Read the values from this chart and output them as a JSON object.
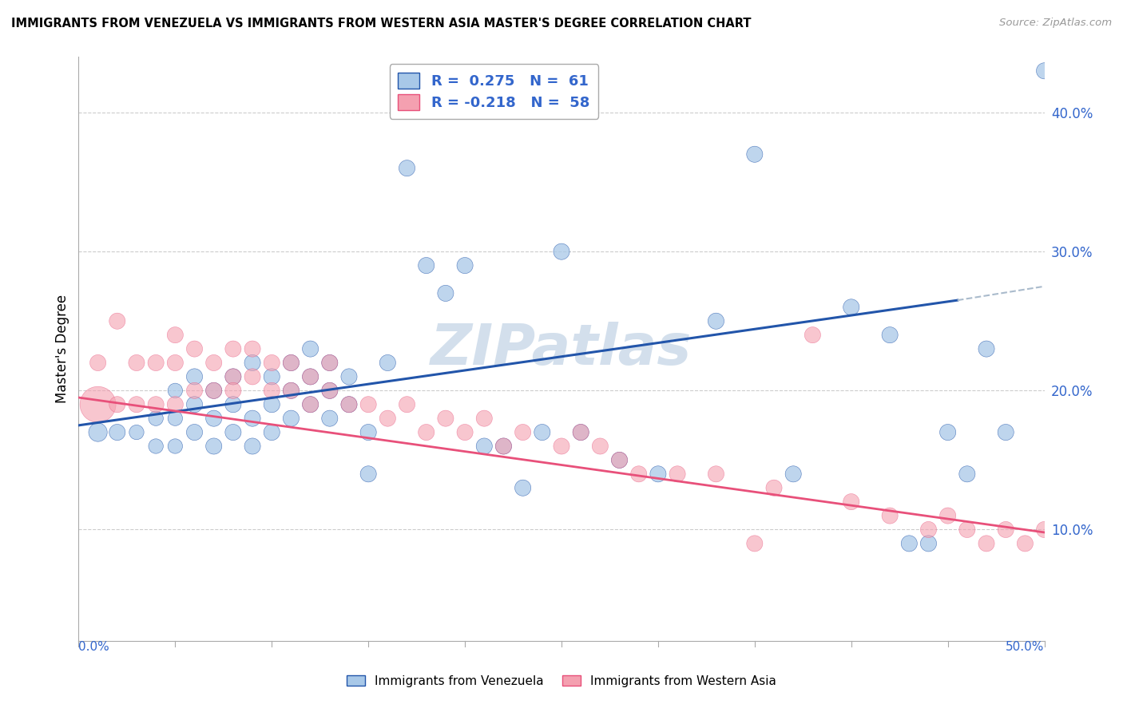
{
  "title": "IMMIGRANTS FROM VENEZUELA VS IMMIGRANTS FROM WESTERN ASIA MASTER'S DEGREE CORRELATION CHART",
  "source": "Source: ZipAtlas.com",
  "ylabel": "Master's Degree",
  "y_tick_labels": [
    "10.0%",
    "20.0%",
    "30.0%",
    "40.0%"
  ],
  "y_tick_values": [
    0.1,
    0.2,
    0.3,
    0.4
  ],
  "xlim": [
    0.0,
    0.5
  ],
  "ylim": [
    0.02,
    0.44
  ],
  "r_venezuela": 0.275,
  "n_venezuela": 61,
  "r_western_asia": -0.218,
  "n_western_asia": 58,
  "color_venezuela": "#A8C8E8",
  "color_western_asia": "#F4A0B0",
  "color_venezuela_line": "#2255AA",
  "color_western_asia_line": "#E8507A",
  "color_dashed_ext": "#AABBCC",
  "watermark_color": "#C8D8E8",
  "venezuela_x": [
    0.01,
    0.02,
    0.03,
    0.04,
    0.04,
    0.05,
    0.05,
    0.05,
    0.06,
    0.06,
    0.06,
    0.07,
    0.07,
    0.07,
    0.08,
    0.08,
    0.08,
    0.09,
    0.09,
    0.09,
    0.1,
    0.1,
    0.1,
    0.11,
    0.11,
    0.11,
    0.12,
    0.12,
    0.12,
    0.13,
    0.13,
    0.13,
    0.14,
    0.14,
    0.15,
    0.15,
    0.16,
    0.17,
    0.18,
    0.19,
    0.2,
    0.21,
    0.22,
    0.23,
    0.24,
    0.25,
    0.26,
    0.28,
    0.3,
    0.33,
    0.35,
    0.37,
    0.4,
    0.42,
    0.43,
    0.44,
    0.45,
    0.46,
    0.47,
    0.48,
    0.5
  ],
  "venezuela_y": [
    0.17,
    0.17,
    0.17,
    0.16,
    0.18,
    0.16,
    0.18,
    0.2,
    0.17,
    0.19,
    0.21,
    0.16,
    0.18,
    0.2,
    0.17,
    0.19,
    0.21,
    0.16,
    0.18,
    0.22,
    0.17,
    0.19,
    0.21,
    0.18,
    0.2,
    0.22,
    0.19,
    0.21,
    0.23,
    0.18,
    0.2,
    0.22,
    0.19,
    0.21,
    0.14,
    0.17,
    0.22,
    0.36,
    0.29,
    0.27,
    0.29,
    0.16,
    0.16,
    0.13,
    0.17,
    0.3,
    0.17,
    0.15,
    0.14,
    0.25,
    0.37,
    0.14,
    0.26,
    0.24,
    0.09,
    0.09,
    0.17,
    0.14,
    0.23,
    0.17,
    0.43
  ],
  "venezuela_sizes": [
    80,
    60,
    50,
    50,
    50,
    50,
    50,
    50,
    60,
    60,
    60,
    60,
    60,
    60,
    60,
    60,
    60,
    60,
    60,
    60,
    60,
    60,
    60,
    60,
    60,
    60,
    60,
    60,
    60,
    60,
    60,
    60,
    60,
    60,
    60,
    60,
    60,
    60,
    60,
    60,
    60,
    60,
    60,
    60,
    60,
    60,
    60,
    60,
    60,
    60,
    60,
    60,
    60,
    60,
    60,
    60,
    60,
    60,
    60,
    60,
    60
  ],
  "western_asia_x": [
    0.01,
    0.01,
    0.02,
    0.02,
    0.03,
    0.03,
    0.04,
    0.04,
    0.05,
    0.05,
    0.05,
    0.06,
    0.06,
    0.07,
    0.07,
    0.08,
    0.08,
    0.08,
    0.09,
    0.09,
    0.1,
    0.1,
    0.11,
    0.11,
    0.12,
    0.12,
    0.13,
    0.13,
    0.14,
    0.15,
    0.16,
    0.17,
    0.18,
    0.19,
    0.2,
    0.21,
    0.22,
    0.23,
    0.25,
    0.26,
    0.27,
    0.28,
    0.29,
    0.31,
    0.33,
    0.35,
    0.36,
    0.38,
    0.4,
    0.42,
    0.44,
    0.45,
    0.46,
    0.47,
    0.48,
    0.49,
    0.5,
    0.51
  ],
  "western_asia_y": [
    0.19,
    0.22,
    0.25,
    0.19,
    0.22,
    0.19,
    0.22,
    0.19,
    0.22,
    0.19,
    0.24,
    0.2,
    0.23,
    0.2,
    0.22,
    0.21,
    0.23,
    0.2,
    0.21,
    0.23,
    0.2,
    0.22,
    0.2,
    0.22,
    0.21,
    0.19,
    0.2,
    0.22,
    0.19,
    0.19,
    0.18,
    0.19,
    0.17,
    0.18,
    0.17,
    0.18,
    0.16,
    0.17,
    0.16,
    0.17,
    0.16,
    0.15,
    0.14,
    0.14,
    0.14,
    0.09,
    0.13,
    0.24,
    0.12,
    0.11,
    0.1,
    0.11,
    0.1,
    0.09,
    0.1,
    0.09,
    0.1,
    0.09
  ],
  "western_asia_sizes": [
    300,
    60,
    60,
    60,
    60,
    60,
    60,
    60,
    60,
    60,
    60,
    60,
    60,
    60,
    60,
    60,
    60,
    60,
    60,
    60,
    60,
    60,
    60,
    60,
    60,
    60,
    60,
    60,
    60,
    60,
    60,
    60,
    60,
    60,
    60,
    60,
    60,
    60,
    60,
    60,
    60,
    60,
    60,
    60,
    60,
    60,
    60,
    60,
    60,
    60,
    60,
    60,
    60,
    60,
    60,
    60,
    60,
    60
  ],
  "blue_line_x_start": 0.0,
  "blue_line_x_solid_end": 0.455,
  "blue_line_x_dash_end": 0.5,
  "blue_line_y_start": 0.175,
  "blue_line_y_at_solid_end": 0.265,
  "blue_line_y_at_dash_end": 0.275,
  "pink_line_x_start": 0.0,
  "pink_line_x_end": 0.5,
  "pink_line_y_start": 0.195,
  "pink_line_y_end": 0.098
}
